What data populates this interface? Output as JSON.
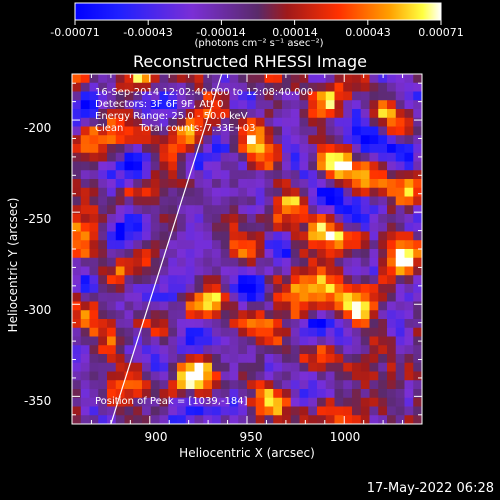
{
  "chart_data": {
    "type": "heatmap",
    "title": "Reconstructed RHESSI Image",
    "xlabel": "Heliocentric X (arcsec)",
    "ylabel": "Heliocentric Y (arcsec)",
    "xlim": [
      860,
      1040
    ],
    "ylim": [
      -365,
      -175
    ],
    "x_ticks": [
      "900",
      "950",
      "1000"
    ],
    "y_ticks": [
      "-200",
      "-250",
      "-300",
      "-350"
    ],
    "colorbar": {
      "ticks": [
        "-0.00071",
        "-0.00043",
        "-0.00014",
        "0.00014",
        "0.00043",
        "0.00071"
      ],
      "unit": "(photons cm⁻² s⁻¹ asec⁻²)",
      "range": [
        -0.00071,
        0.00071
      ]
    },
    "info_lines": [
      "16-Sep-2014 12:02:40.000 to 12:08:40.000",
      "Detectors: 3F 6F 9F, Att 0",
      "Energy Range: 25.0 - 50.0 keV",
      "Clean     Total counts: 7.33E+03"
    ],
    "peak_label": "Position of Peak = [1039,-184]",
    "peak_position": [
      1039,
      -184
    ],
    "limb_line": {
      "x_top": 937,
      "x_bottom": 880
    },
    "grid": false
  },
  "footer": {
    "date": "17-May-2022 06:28"
  }
}
